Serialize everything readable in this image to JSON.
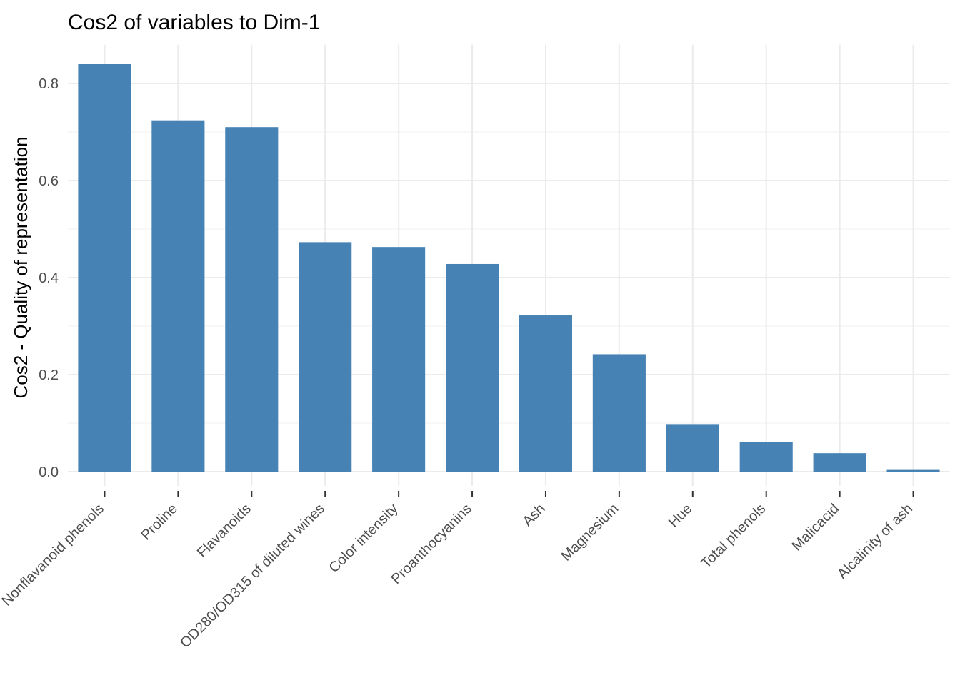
{
  "chart_data": {
    "type": "bar",
    "title": "Cos2 of variables to Dim-1",
    "xlabel": "",
    "ylabel": "Cos2 - Quality of representation",
    "categories": [
      "Nonflavanoid phenols",
      "Proline",
      "Flavanoids",
      "OD280/OD315 of diluted wines",
      "Color intensity",
      "Proanthocyanins",
      "Ash",
      "Magnesium",
      "Hue",
      "Total phenols",
      "Malicacid",
      "Alcalinity of ash"
    ],
    "values": [
      0.841,
      0.724,
      0.71,
      0.473,
      0.463,
      0.428,
      0.322,
      0.242,
      0.098,
      0.061,
      0.038,
      0.005
    ],
    "ylim": [
      0,
      0.88
    ],
    "yticks": [
      "0.0",
      "0.2",
      "0.4",
      "0.6",
      "0.8"
    ],
    "grid": true,
    "bar_color": "#4682B4"
  }
}
